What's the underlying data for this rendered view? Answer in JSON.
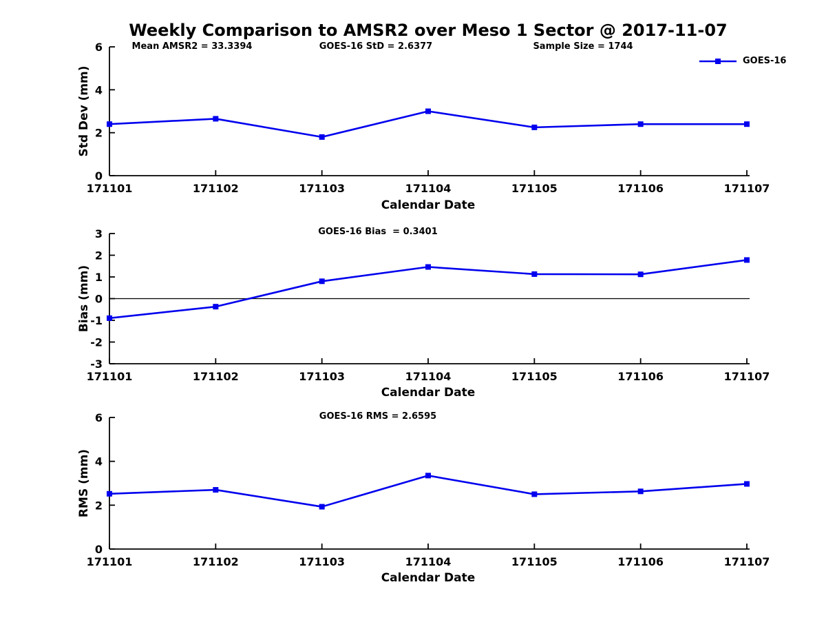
{
  "figure_title": "Weekly Comparison to AMSR2 over Meso 1 Sector @ 2017-11-07",
  "legend": {
    "label": "GOES-16",
    "color": "#0000EE"
  },
  "chart_data": [
    {
      "type": "line",
      "title": "",
      "annotations": [
        "Mean AMSR2 = 33.3394",
        "GOES-16 StD = 2.6377",
        "Sample Size = 1744"
      ],
      "categories": [
        "171101",
        "171102",
        "171103",
        "171104",
        "171105",
        "171106",
        "171107"
      ],
      "series": [
        {
          "name": "GOES-16",
          "values": [
            2.4,
            2.65,
            1.8,
            3.0,
            2.25,
            2.4,
            2.4
          ]
        }
      ],
      "xlabel": "Calendar Date",
      "ylabel": "Std Dev (mm)",
      "ylim": [
        0,
        6
      ],
      "yticks": [
        0,
        2,
        4,
        6
      ],
      "grid": false,
      "zero_line": false,
      "legend_position": "upper right"
    },
    {
      "type": "line",
      "title": "",
      "annotations": [
        "GOES-16 Bias  = 0.3401"
      ],
      "categories": [
        "171101",
        "171102",
        "171103",
        "171104",
        "171105",
        "171106",
        "171107"
      ],
      "series": [
        {
          "name": "GOES-16",
          "values": [
            -0.9,
            -0.37,
            0.8,
            1.46,
            1.13,
            1.12,
            1.78
          ]
        }
      ],
      "xlabel": "Calendar Date",
      "ylabel": "Bias (mm)",
      "ylim": [
        -3,
        3
      ],
      "yticks": [
        3,
        2,
        1,
        0,
        -1,
        -2,
        -3
      ],
      "grid": false,
      "zero_line": true,
      "legend_position": "none"
    },
    {
      "type": "line",
      "title": "",
      "annotations": [
        "GOES-16 RMS = 2.6595"
      ],
      "categories": [
        "171101",
        "171102",
        "171103",
        "171104",
        "171105",
        "171106",
        "171107"
      ],
      "series": [
        {
          "name": "GOES-16",
          "values": [
            2.52,
            2.7,
            1.93,
            3.35,
            2.5,
            2.63,
            2.97
          ]
        }
      ],
      "xlabel": "Calendar Date",
      "ylabel": "RMS (mm)",
      "ylim": [
        0,
        6
      ],
      "yticks": [
        0,
        2,
        4,
        6
      ],
      "grid": false,
      "zero_line": false,
      "legend_position": "none"
    }
  ]
}
